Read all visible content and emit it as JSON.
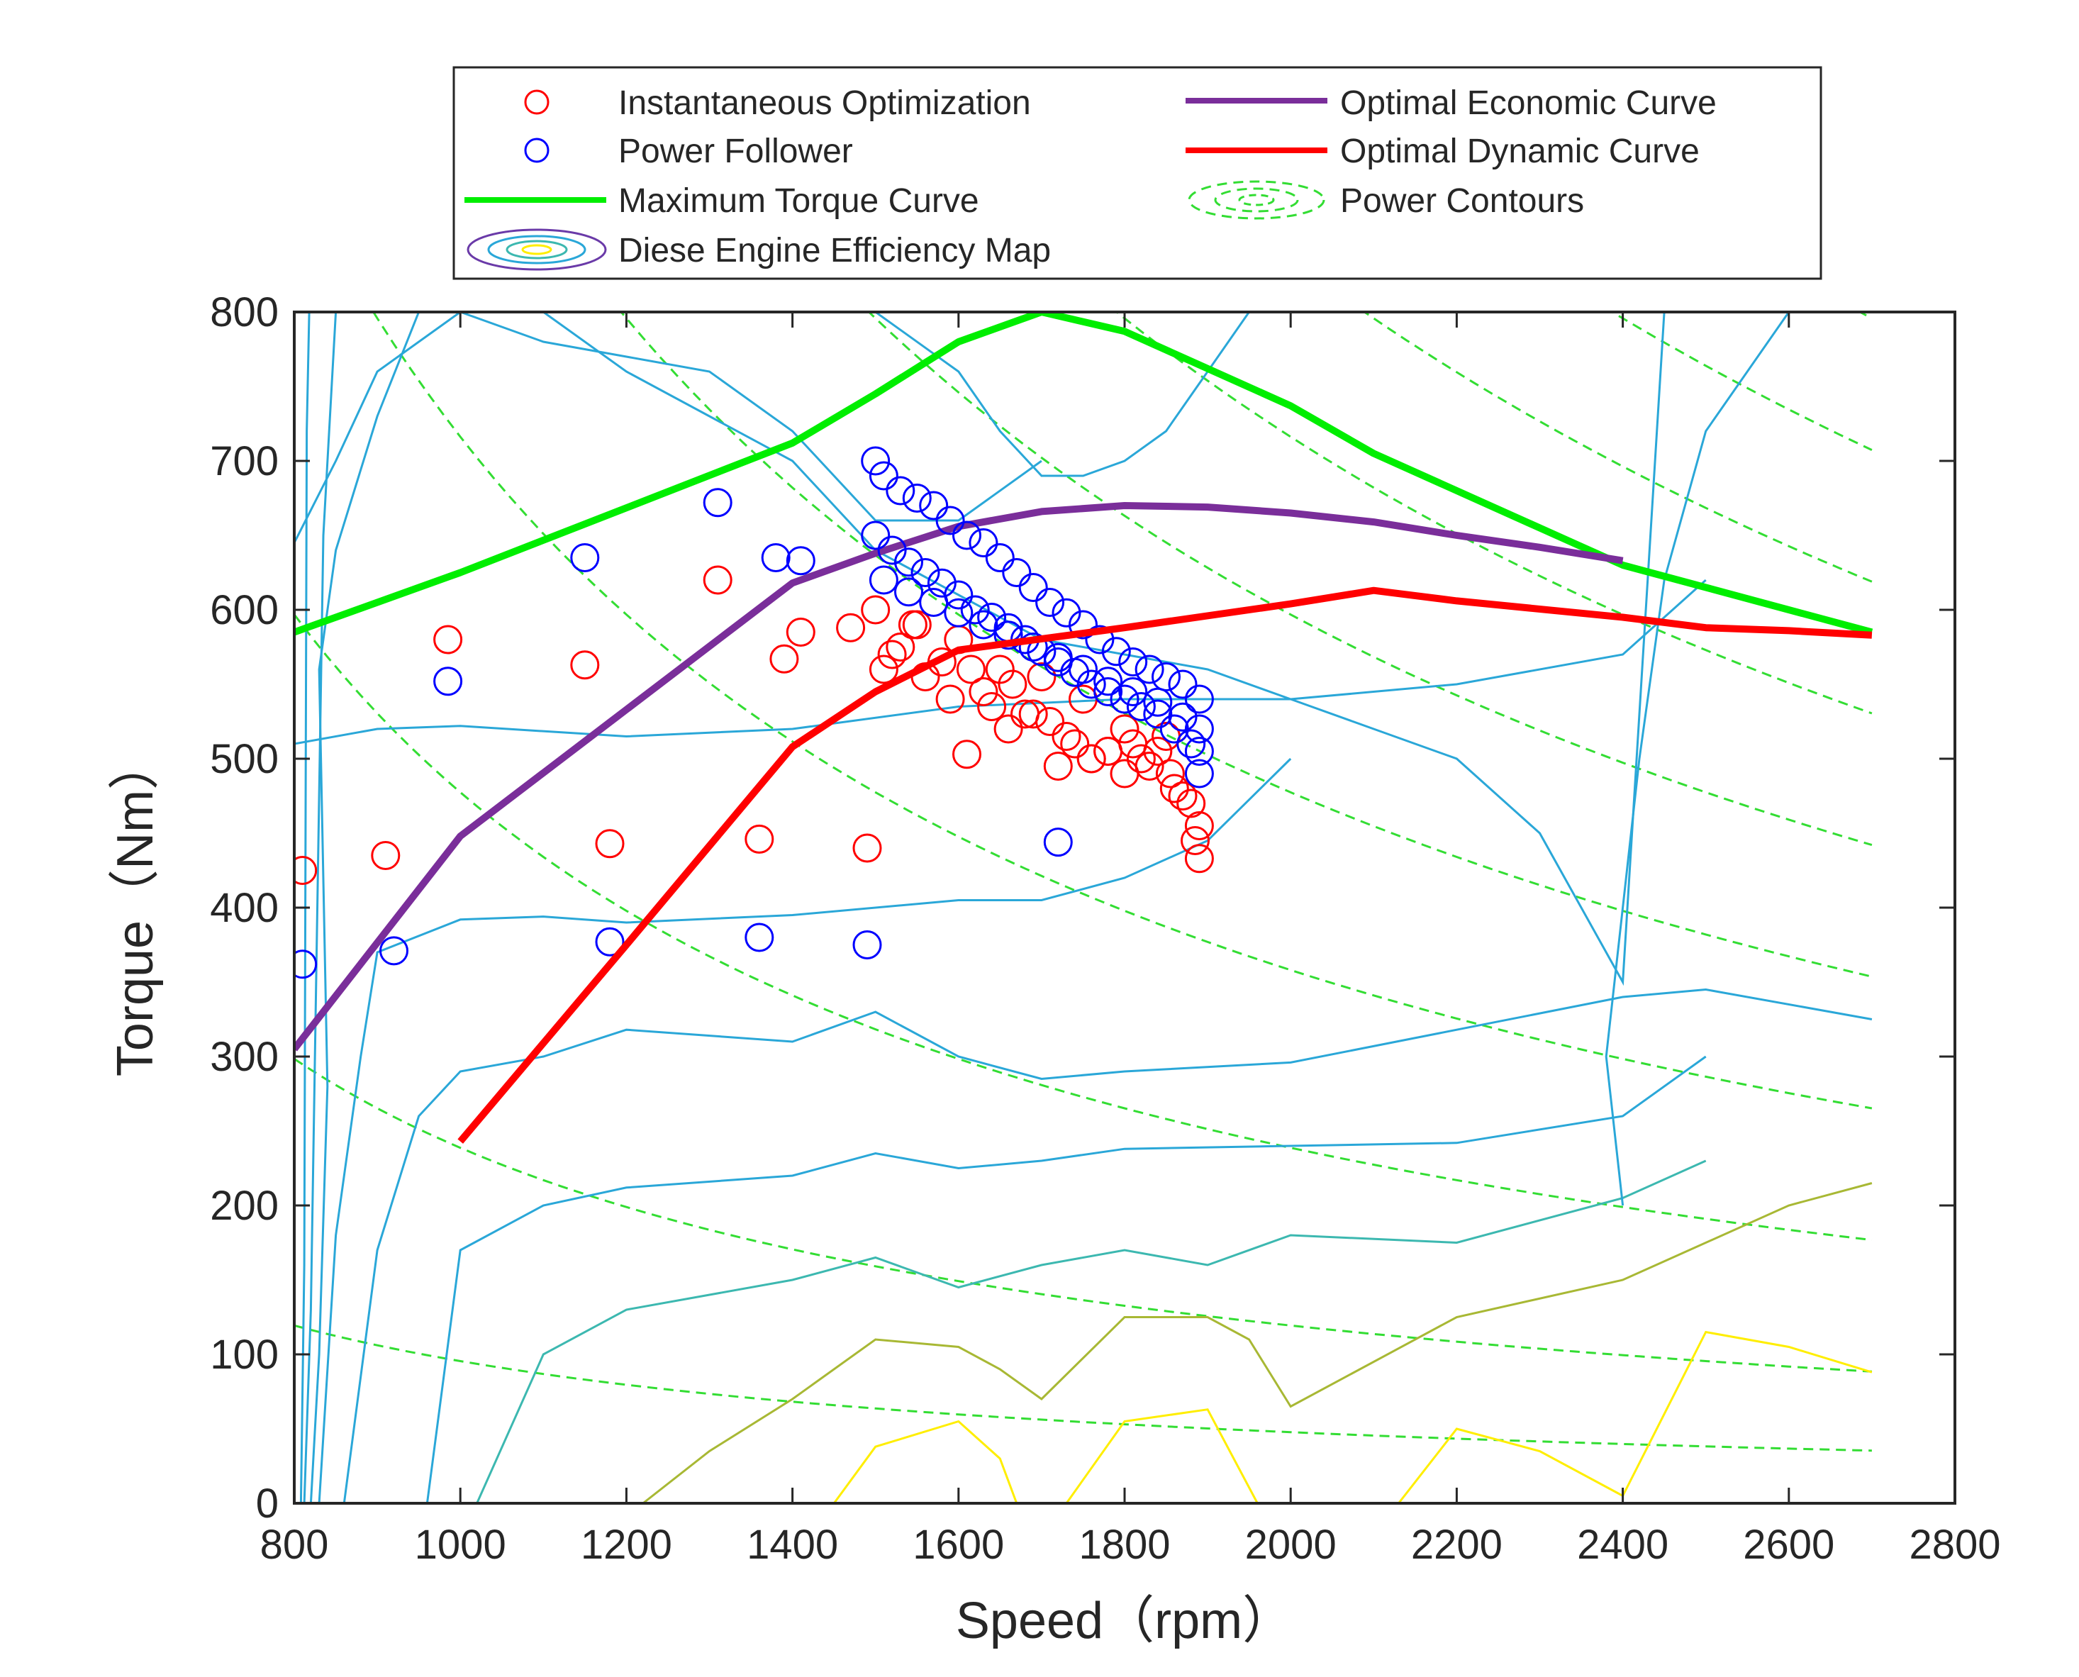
{
  "chart_data": {
    "type": "scatter",
    "title": "",
    "xlabel": "Speed（rpm）",
    "ylabel": "Torque（Nm）",
    "xlim": [
      800,
      2800
    ],
    "ylim": [
      0,
      800
    ],
    "xticks": [
      800,
      1000,
      1200,
      1400,
      1600,
      1800,
      2000,
      2200,
      2400,
      2600,
      2800
    ],
    "yticks": [
      0,
      100,
      200,
      300,
      400,
      500,
      600,
      700,
      800
    ],
    "grid": false,
    "legend_position": "top",
    "colors": {
      "instantaneous": "#ff0000",
      "follower": "#0000ff",
      "max_torque": "#00ee00",
      "economic": "#7a2e9a",
      "dynamic": "#ff0000",
      "power_contours": "#33dd33",
      "efficiency_contour": "#2aa7d8",
      "efficiency_contour_mid": "#3cb8b0",
      "efficiency_contour_low": "#a8b834",
      "efficiency_contour_peak": "#ffee00"
    },
    "legend": [
      {
        "label": "Instantaneous Optimization",
        "kind": "marker-red"
      },
      {
        "label": "Power Follower",
        "kind": "marker-blue"
      },
      {
        "label": "Maximum Torque Curve",
        "kind": "line-green"
      },
      {
        "label": "Diese Engine Efficiency Map",
        "kind": "ellipses"
      },
      {
        "label": "Optimal Economic Curve",
        "kind": "line-purple"
      },
      {
        "label": "Optimal Dynamic Curve",
        "kind": "line-red"
      },
      {
        "label": "Power Contours",
        "kind": "dashed-ellipses"
      }
    ],
    "lines": {
      "max_torque": {
        "name": "Maximum Torque Curve",
        "x": [
          800,
          1000,
          1400,
          1500,
          1600,
          1700,
          1800,
          2000,
          2100,
          2400,
          2700
        ],
        "y": [
          585,
          625,
          712,
          745,
          780,
          800,
          787,
          737,
          705,
          630,
          585
        ]
      },
      "economic": {
        "name": "Optimal Economic Curve",
        "x": [
          800,
          1000,
          1200,
          1400,
          1500,
          1600,
          1700,
          1800,
          1900,
          2000,
          2100,
          2200,
          2300,
          2400
        ],
        "y": [
          305,
          448,
          533,
          618,
          638,
          656,
          666,
          670,
          669,
          665,
          659,
          650,
          642,
          633
        ]
      },
      "dynamic": {
        "name": "Optimal Dynamic Curve",
        "x": [
          1000,
          1200,
          1400,
          1500,
          1600,
          1800,
          2000,
          2100,
          2200,
          2400,
          2500,
          2600,
          2700
        ],
        "y": [
          243,
          375,
          508,
          545,
          573,
          588,
          604,
          613,
          606,
          595,
          588,
          586,
          583
        ]
      }
    },
    "power_contour_levels_kw": [
      10,
      25,
      50,
      75,
      100,
      125,
      150,
      175,
      200,
      225
    ],
    "efficiency_contours": [
      {
        "x": [
          808,
          812,
          815,
          818
        ],
        "y": [
          0,
          160,
          720,
          800
        ]
      },
      {
        "x": [
          812,
          820,
          835,
          850
        ],
        "y": [
          0,
          130,
          650,
          800
        ]
      },
      {
        "x": [
          820,
          830,
          840,
          830,
          850,
          900,
          950
        ],
        "y": [
          0,
          100,
          280,
          560,
          640,
          730,
          800
        ]
      },
      {
        "x": [
          830,
          850,
          880,
          900,
          1000,
          1100,
          1200,
          1400,
          1600,
          1700,
          1800,
          1900,
          2000
        ],
        "y": [
          0,
          180,
          300,
          370,
          392,
          394,
          390,
          395,
          405,
          405,
          420,
          445,
          500
        ]
      },
      {
        "x": [
          860,
          900,
          950,
          1000,
          1100,
          1200,
          1400,
          1500,
          1600,
          1700,
          1800,
          2000,
          2200,
          2400,
          2500,
          2700
        ],
        "y": [
          0,
          170,
          260,
          290,
          300,
          318,
          310,
          330,
          300,
          285,
          290,
          296,
          318,
          340,
          345,
          325
        ]
      },
      {
        "x": [
          960,
          1000,
          1100,
          1200,
          1400,
          1500,
          1600,
          1700,
          1800,
          2000,
          2200,
          2400,
          2500
        ],
        "y": [
          0,
          170,
          200,
          212,
          220,
          235,
          225,
          230,
          238,
          240,
          242,
          260,
          300
        ]
      },
      {
        "x": [
          1020,
          1100,
          1200,
          1400,
          1500,
          1600,
          1700,
          1800,
          1900,
          2000,
          2200,
          2400,
          2500
        ],
        "y": [
          0,
          100,
          130,
          150,
          165,
          145,
          160,
          170,
          160,
          180,
          175,
          205,
          230
        ]
      },
      {
        "x": [
          1220,
          1300,
          1400,
          1500,
          1600,
          1650,
          1700,
          1800,
          1900,
          1950,
          2000,
          2200,
          2400,
          2600,
          2700
        ],
        "y": [
          0,
          35,
          70,
          110,
          105,
          90,
          70,
          125,
          125,
          110,
          65,
          125,
          150,
          200,
          215
        ]
      },
      {
        "x": [
          1450,
          1500,
          1600,
          1650,
          1670
        ],
        "y": [
          0,
          38,
          55,
          30,
          0
        ]
      },
      {
        "x": [
          1730,
          1800,
          1900,
          1960
        ],
        "y": [
          0,
          55,
          63,
          0
        ]
      },
      {
        "x": [
          2130,
          2200,
          2300,
          2400
        ],
        "y": [
          0,
          50,
          35,
          5
        ]
      },
      {
        "x": [
          2400,
          2500,
          2600,
          2700
        ],
        "y": [
          5,
          115,
          105,
          88
        ]
      },
      {
        "x": [
          800,
          900,
          1000,
          1200,
          1400,
          1600,
          1800,
          2000,
          2200,
          2400,
          2500
        ],
        "y": [
          510,
          520,
          522,
          515,
          520,
          535,
          540,
          540,
          550,
          570,
          620
        ]
      },
      {
        "x": [
          800,
          850,
          900,
          1000,
          1100,
          1200,
          1300,
          1400,
          1500,
          1600,
          1700
        ],
        "y": [
          645,
          700,
          760,
          800,
          780,
          770,
          760,
          720,
          660,
          660,
          700
        ]
      },
      {
        "x": [
          1100,
          1200,
          1400,
          1500,
          1600,
          1700,
          1800,
          1900,
          2000,
          2100,
          2200,
          2300,
          2400,
          2450
        ],
        "y": [
          800,
          760,
          700,
          640,
          610,
          580,
          570,
          560,
          540,
          520,
          500,
          450,
          350,
          800
        ]
      },
      {
        "x": [
          1500,
          1600,
          1650,
          1700,
          1750,
          1800,
          1850,
          1900,
          1950,
          2000
        ],
        "y": [
          800,
          760,
          720,
          690,
          690,
          700,
          720,
          760,
          800,
          800
        ]
      },
      {
        "x": [
          2600,
          2500,
          2450,
          2420,
          2400,
          2380,
          2400
        ],
        "y": [
          800,
          720,
          620,
          500,
          400,
          300,
          200
        ]
      }
    ],
    "series": [
      {
        "name": "Instantaneous Optimization",
        "marker": "circle-open",
        "color": "#ff0000",
        "x": [
          810,
          910,
          985,
          1150,
          1180,
          1310,
          1360,
          1390,
          1410,
          1470,
          1490,
          1510,
          1530,
          1560,
          1590,
          1610,
          1640,
          1660,
          1690,
          1720,
          1740,
          1760,
          1780,
          1800,
          1820,
          1840,
          1860,
          1880,
          1890,
          1890,
          1500,
          1550,
          1600,
          1650,
          1700,
          1750,
          1800,
          1850,
          1520,
          1580,
          1630,
          1680,
          1730,
          1780,
          1830,
          1870,
          1545,
          1615,
          1665,
          1710,
          1760,
          1810,
          1855,
          1885
        ],
        "y": [
          425,
          435,
          580,
          563,
          443,
          620,
          446,
          567,
          585,
          588,
          440,
          560,
          575,
          555,
          540,
          503,
          535,
          520,
          530,
          495,
          510,
          500,
          505,
          490,
          500,
          505,
          480,
          470,
          455,
          433,
          600,
          590,
          580,
          560,
          555,
          540,
          520,
          515,
          570,
          565,
          545,
          530,
          515,
          505,
          495,
          475,
          590,
          560,
          550,
          525,
          500,
          510,
          490,
          445
        ]
      },
      {
        "name": "Power Follower",
        "marker": "circle-open",
        "color": "#0000ff",
        "x": [
          810,
          920,
          985,
          1150,
          1180,
          1310,
          1360,
          1380,
          1410,
          1490,
          1500,
          1720,
          1510,
          1530,
          1550,
          1570,
          1590,
          1610,
          1630,
          1650,
          1670,
          1690,
          1710,
          1730,
          1750,
          1770,
          1790,
          1810,
          1830,
          1850,
          1870,
          1890,
          1500,
          1520,
          1540,
          1560,
          1580,
          1600,
          1620,
          1640,
          1660,
          1680,
          1700,
          1720,
          1740,
          1760,
          1780,
          1800,
          1820,
          1840,
          1860,
          1880,
          1510,
          1540,
          1570,
          1600,
          1630,
          1660,
          1690,
          1720,
          1750,
          1780,
          1810,
          1840,
          1870,
          1890,
          1890,
          1890
        ],
        "y": [
          362,
          371,
          552,
          635,
          377,
          672,
          380,
          635,
          633,
          375,
          700,
          444,
          690,
          680,
          675,
          670,
          660,
          650,
          645,
          635,
          625,
          615,
          605,
          598,
          590,
          580,
          572,
          565,
          560,
          555,
          550,
          540,
          650,
          640,
          632,
          625,
          618,
          610,
          600,
          595,
          588,
          580,
          572,
          565,
          558,
          550,
          545,
          540,
          535,
          530,
          520,
          510,
          620,
          612,
          605,
          598,
          590,
          583,
          575,
          568,
          560,
          552,
          545,
          538,
          528,
          520,
          505,
          490
        ]
      }
    ]
  }
}
